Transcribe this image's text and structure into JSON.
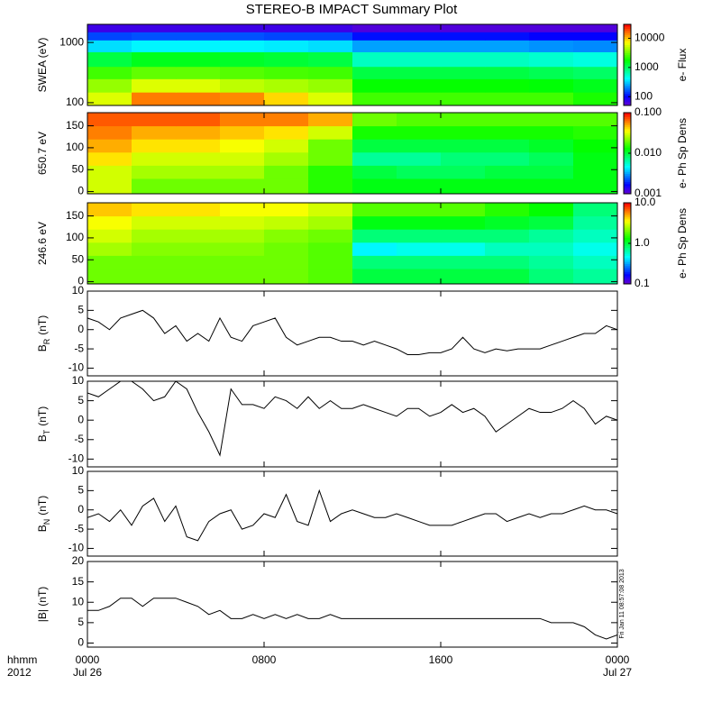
{
  "title": "STEREO-B IMPACT Summary Plot",
  "corner_label": [
    "hhmm",
    "2012"
  ],
  "timestamp": "Fri Jan 11 08:57:08 2013",
  "chart_data": [
    {
      "type": "heatmap",
      "ylabel": "SWEA (eV)",
      "ylog": true,
      "ylim": [
        90,
        2000
      ],
      "yticks": [
        100,
        1000
      ],
      "xlim": [
        0,
        24
      ],
      "xbins": [
        0,
        2,
        4,
        6,
        8,
        10,
        12,
        14,
        16,
        18,
        20,
        22,
        24
      ],
      "ybins": [
        90,
        150,
        250,
        400,
        700,
        1100,
        1500,
        2000
      ],
      "zlog": true,
      "zlim": [
        50,
        30000
      ],
      "zticks": [
        100,
        1000,
        10000
      ],
      "colorbar_label": "e- Flux",
      "values": [
        [
          6000,
          15000,
          15000,
          14000,
          9000,
          6000,
          2500,
          2500,
          2500,
          2500,
          2500,
          2000
        ],
        [
          4000,
          6000,
          6000,
          5000,
          4500,
          4000,
          1800,
          1800,
          1800,
          1800,
          1700,
          1500
        ],
        [
          2500,
          3000,
          3000,
          2800,
          2600,
          2500,
          1200,
          1200,
          1200,
          1200,
          1100,
          1000
        ],
        [
          1200,
          1500,
          1500,
          1400,
          1300,
          1200,
          600,
          600,
          600,
          600,
          550,
          500
        ],
        [
          350,
          400,
          400,
          400,
          380,
          350,
          250,
          250,
          250,
          250,
          230,
          220
        ],
        [
          150,
          160,
          160,
          160,
          150,
          150,
          110,
          110,
          110,
          110,
          100,
          100
        ],
        [
          70,
          70,
          70,
          70,
          70,
          70,
          60,
          60,
          60,
          60,
          60,
          60
        ]
      ]
    },
    {
      "type": "heatmap",
      "ylabel": "650.7 eV",
      "ylim": [
        -5,
        180
      ],
      "yticks": [
        0,
        50,
        100,
        150
      ],
      "xlim": [
        0,
        24
      ],
      "xbins": [
        0,
        2,
        4,
        6,
        8,
        10,
        12,
        14,
        16,
        18,
        20,
        22,
        24
      ],
      "ybins": [
        -5,
        30,
        60,
        90,
        120,
        150,
        180
      ],
      "zlog": true,
      "zlim": [
        0.001,
        0.1
      ],
      "zticks": [
        0.001,
        {
          "value": 0.01,
          "label": "0.010"
        },
        {
          "value": 0.1,
          "label": "0.100"
        }
      ],
      "colorbar_label": "e- Ph Sp Dens",
      "values": [
        [
          0.03,
          0.02,
          0.02,
          0.02,
          0.02,
          0.015,
          0.012,
          0.012,
          0.012,
          0.012,
          0.012,
          0.012
        ],
        [
          0.03,
          0.025,
          0.025,
          0.025,
          0.02,
          0.015,
          0.01,
          0.009,
          0.009,
          0.01,
          0.01,
          0.012
        ],
        [
          0.04,
          0.03,
          0.03,
          0.03,
          0.025,
          0.02,
          0.007,
          0.007,
          0.008,
          0.008,
          0.009,
          0.012
        ],
        [
          0.05,
          0.04,
          0.04,
          0.035,
          0.03,
          0.02,
          0.01,
          0.01,
          0.01,
          0.01,
          0.011,
          0.013
        ],
        [
          0.06,
          0.05,
          0.05,
          0.045,
          0.04,
          0.03,
          0.014,
          0.014,
          0.014,
          0.014,
          0.014,
          0.015
        ],
        [
          0.07,
          0.07,
          0.07,
          0.06,
          0.06,
          0.05,
          0.02,
          0.018,
          0.018,
          0.018,
          0.018,
          0.018
        ]
      ]
    },
    {
      "type": "heatmap",
      "ylabel": "246.6 eV",
      "ylim": [
        -5,
        180
      ],
      "yticks": [
        0,
        50,
        100,
        150
      ],
      "xlim": [
        0,
        24
      ],
      "xbins": [
        0,
        2,
        4,
        6,
        8,
        10,
        12,
        14,
        16,
        18,
        20,
        22,
        24
      ],
      "ybins": [
        -5,
        30,
        60,
        90,
        120,
        150,
        180
      ],
      "zlog": true,
      "zlim": [
        0.1,
        10
      ],
      "zticks": [
        0.1,
        {
          "value": 1,
          "label": "1.0"
        },
        {
          "value": 10,
          "label": "10.0"
        }
      ],
      "colorbar_label": "e- Ph Sp Dens",
      "values": [
        [
          2,
          2,
          2,
          2,
          2,
          1.8,
          1,
          1,
          1,
          1,
          0.8,
          0.7
        ],
        [
          2,
          2,
          2,
          2,
          2,
          1.8,
          0.8,
          0.8,
          0.8,
          0.8,
          0.7,
          0.6
        ],
        [
          2.5,
          2.2,
          2.2,
          2.2,
          2,
          1.8,
          0.45,
          0.5,
          0.5,
          0.6,
          0.6,
          0.5
        ],
        [
          3,
          2.5,
          2.5,
          2.5,
          2.2,
          2,
          0.8,
          0.8,
          0.8,
          0.8,
          0.7,
          0.6
        ],
        [
          3.5,
          3,
          3,
          3,
          2.8,
          2.5,
          1.2,
          1.2,
          1.2,
          1.1,
          1,
          0.7
        ],
        [
          4.5,
          4,
          4,
          3.5,
          3.5,
          3,
          1.8,
          1.8,
          1.8,
          1.5,
          1.3,
          0.8
        ]
      ]
    },
    {
      "type": "line",
      "ylabel": "B",
      "ylabel_sub": "R",
      "ylabel_unit": "(nT)",
      "color": "#000000",
      "xlim": [
        0,
        24
      ],
      "ylim": [
        -12,
        10
      ],
      "yticks": [
        -10,
        -5,
        0,
        5,
        10
      ],
      "x": [
        0,
        0.5,
        1,
        1.5,
        2,
        2.5,
        3,
        3.5,
        4,
        4.5,
        5,
        5.5,
        6,
        6.5,
        7,
        7.5,
        8,
        8.5,
        9,
        9.5,
        10,
        10.5,
        11,
        11.5,
        12,
        12.5,
        13,
        13.5,
        14,
        14.5,
        15,
        15.5,
        16,
        16.5,
        17,
        17.5,
        18,
        18.5,
        19,
        19.5,
        20,
        20.5,
        21,
        21.5,
        22,
        22.5,
        23,
        23.5,
        24
      ],
      "values": [
        3,
        2,
        0,
        3,
        4,
        5,
        3,
        -1,
        1,
        -3,
        -1,
        -3,
        3,
        -2,
        -3,
        1,
        2,
        3,
        -2,
        -4,
        -3,
        -2,
        -2,
        -3,
        -3,
        -4,
        -3,
        -4,
        -5,
        -6.5,
        -6.5,
        -6,
        -6,
        -5,
        -2,
        -5,
        -6,
        -5,
        -5.5,
        -5,
        -5,
        -5,
        -4,
        -3,
        -2,
        -1,
        -1,
        1,
        0
      ]
    },
    {
      "type": "line",
      "ylabel": "B",
      "ylabel_sub": "T",
      "ylabel_unit": "(nT)",
      "color": "#000000",
      "xlim": [
        0,
        24
      ],
      "ylim": [
        -12,
        10
      ],
      "yticks": [
        -10,
        -5,
        0,
        5,
        10
      ],
      "x": [
        0,
        0.5,
        1,
        1.5,
        2,
        2.5,
        3,
        3.5,
        4,
        4.5,
        5,
        5.5,
        6,
        6.5,
        7,
        7.5,
        8,
        8.5,
        9,
        9.5,
        10,
        10.5,
        11,
        11.5,
        12,
        12.5,
        13,
        13.5,
        14,
        14.5,
        15,
        15.5,
        16,
        16.5,
        17,
        17.5,
        18,
        18.5,
        19,
        19.5,
        20,
        20.5,
        21,
        21.5,
        22,
        22.5,
        23,
        23.5,
        24
      ],
      "values": [
        7,
        6,
        8,
        10,
        10,
        8,
        5,
        6,
        10,
        8,
        2,
        -3,
        -9,
        8,
        4,
        4,
        3,
        6,
        5,
        3,
        6,
        3,
        5,
        3,
        3,
        4,
        3,
        2,
        1,
        3,
        3,
        1,
        2,
        4,
        2,
        3,
        1,
        -3,
        -1,
        1,
        3,
        2,
        2,
        3,
        5,
        3,
        -1,
        1,
        0
      ]
    },
    {
      "type": "line",
      "ylabel": "B",
      "ylabel_sub": "N",
      "ylabel_unit": "(nT)",
      "color": "#000000",
      "xlim": [
        0,
        24
      ],
      "ylim": [
        -12,
        10
      ],
      "yticks": [
        -10,
        -5,
        0,
        5,
        10
      ],
      "x": [
        0,
        0.5,
        1,
        1.5,
        2,
        2.5,
        3,
        3.5,
        4,
        4.5,
        5,
        5.5,
        6,
        6.5,
        7,
        7.5,
        8,
        8.5,
        9,
        9.5,
        10,
        10.5,
        11,
        11.5,
        12,
        12.5,
        13,
        13.5,
        14,
        14.5,
        15,
        15.5,
        16,
        16.5,
        17,
        17.5,
        18,
        18.5,
        19,
        19.5,
        20,
        20.5,
        21,
        21.5,
        22,
        22.5,
        23,
        23.5,
        24
      ],
      "values": [
        -2,
        -1,
        -3,
        0,
        -4,
        1,
        3,
        -3,
        1,
        -7,
        -8,
        -3,
        -1,
        0,
        -5,
        -4,
        -1,
        -2,
        4,
        -3,
        -4,
        5,
        -3,
        -1,
        0,
        -1,
        -2,
        -2,
        -1,
        -2,
        -3,
        -4,
        -4,
        -4,
        -3,
        -2,
        -1,
        -1,
        -3,
        -2,
        -1,
        -2,
        -1,
        -1,
        0,
        1,
        0,
        0,
        -1
      ]
    },
    {
      "type": "line",
      "ylabel": "|B| (nT)",
      "color": "#000000",
      "xlim": [
        0,
        24
      ],
      "ylim": [
        -1,
        20
      ],
      "yticks": [
        0,
        5,
        10,
        15,
        20
      ],
      "xticks": [
        {
          "value": 0,
          "label": "0000"
        },
        {
          "value": 8,
          "label": "0800"
        },
        {
          "value": 16,
          "label": "1600"
        },
        {
          "value": 24,
          "label": "0000"
        }
      ],
      "xtick_dates": [
        {
          "value": 0,
          "label": "Jul 26"
        },
        {
          "value": 24,
          "label": "Jul 27"
        }
      ],
      "x": [
        0,
        0.5,
        1,
        1.5,
        2,
        2.5,
        3,
        3.5,
        4,
        4.5,
        5,
        5.5,
        6,
        6.5,
        7,
        7.5,
        8,
        8.5,
        9,
        9.5,
        10,
        10.5,
        11,
        11.5,
        12,
        12.5,
        13,
        13.5,
        14,
        14.5,
        15,
        15.5,
        16,
        16.5,
        17,
        17.5,
        18,
        18.5,
        19,
        19.5,
        20,
        20.5,
        21,
        21.5,
        22,
        22.5,
        23,
        23.5,
        24
      ],
      "values": [
        8,
        8,
        9,
        11,
        11,
        9,
        11,
        11,
        11,
        10,
        9,
        7,
        8,
        6,
        6,
        7,
        6,
        7,
        6,
        7,
        6,
        6,
        7,
        6,
        6,
        6,
        6,
        6,
        6,
        6,
        6,
        6,
        6,
        6,
        6,
        6,
        6,
        6,
        6,
        6,
        6,
        6,
        5,
        5,
        5,
        4,
        2,
        1,
        2
      ]
    }
  ]
}
